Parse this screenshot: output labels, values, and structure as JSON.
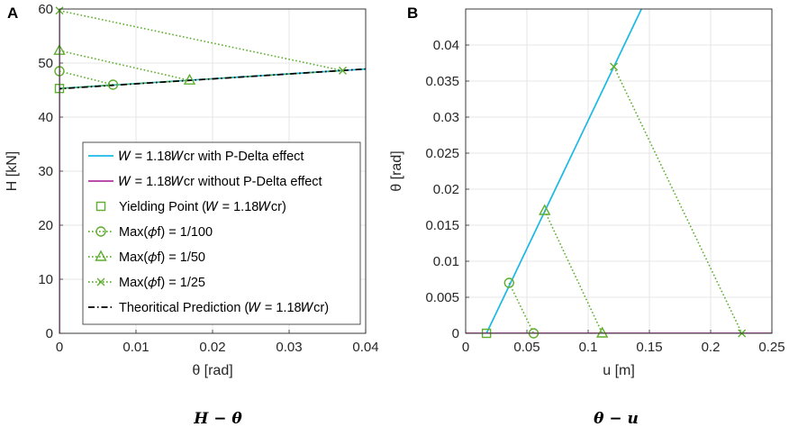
{
  "chart_data": [
    {
      "panel_label": "A",
      "type": "line",
      "xlabel": "θ [rad]",
      "ylabel": "H [kN]",
      "xlim": [
        0,
        0.04
      ],
      "ylim": [
        0,
        60
      ],
      "xticks": [
        "0",
        "0.01",
        "0.02",
        "0.03",
        "0.04"
      ],
      "yticks": [
        "0",
        "10",
        "20",
        "30",
        "40",
        "50",
        "60"
      ],
      "grid": true,
      "caption": "H − θ",
      "legend_location": "lower-right",
      "series": [
        {
          "name": "W = 1.18W_cr with P-Delta effect",
          "legend": "𝑊 = 1.18𝑊cr with P-Delta effect",
          "style": "solid",
          "color": "#1bb8e6",
          "x": [
            0,
            0.04
          ],
          "y": [
            45.3,
            48.9
          ]
        },
        {
          "name": "W = 1.18W_cr without P-Delta effect",
          "legend": "𝑊 = 1.18𝑊cr without P-Delta effect",
          "style": "solid",
          "color": "#b0359e",
          "x": [
            0,
            0
          ],
          "y": [
            0,
            60
          ]
        },
        {
          "name": "Yielding Point (W = 1.18W_cr)",
          "legend": "Yielding Point (𝑊 = 1.18𝑊cr)",
          "marker": "square",
          "color": "#5fae2e",
          "x": [
            0
          ],
          "y": [
            45.3
          ]
        },
        {
          "name": "Max(φ_f) = 1/100",
          "legend": "Max(𝜙f) = 1/100",
          "style": "dotted",
          "marker": "circle",
          "color": "#5fae2e",
          "x": [
            0,
            0.007,
            0
          ],
          "y": [
            48.5,
            46.0,
            45.3
          ]
        },
        {
          "name": "Max(φ_f) = 1/50",
          "legend": "Max(𝜙f) = 1/50",
          "style": "dotted",
          "marker": "triangle",
          "color": "#5fae2e",
          "x": [
            0,
            0.017,
            0
          ],
          "y": [
            52.3,
            46.8,
            45.3
          ]
        },
        {
          "name": "Max(φ_f) = 1/25",
          "legend": "Max(𝜙f) = 1/25",
          "style": "dotted",
          "marker": "x",
          "color": "#5fae2e",
          "x": [
            0,
            0.037,
            0
          ],
          "y": [
            59.7,
            48.6,
            45.3
          ]
        },
        {
          "name": "Theoritical Prediction (W = 1.18W_cr)",
          "legend": "Theoritical Prediction (𝑊 = 1.18𝑊cr)",
          "style": "dashdot",
          "color": "#000000",
          "x": [
            -0.0005,
            0.04
          ],
          "y": [
            45.2,
            48.9
          ]
        }
      ]
    },
    {
      "panel_label": "B",
      "type": "line",
      "xlabel": "u [m]",
      "ylabel": "θ [rad]",
      "xlim": [
        0,
        0.25
      ],
      "ylim": [
        0,
        0.045
      ],
      "xticks": [
        "0",
        "0.05",
        "0.1",
        "0.15",
        "0.2",
        "0.25"
      ],
      "yticks": [
        "0",
        "0.005",
        "0.01",
        "0.015",
        "0.02",
        "0.025",
        "0.03",
        "0.035",
        "0.04"
      ],
      "grid": true,
      "caption": "θ − u",
      "series": [
        {
          "name": "W = 1.18W_cr with P-Delta effect",
          "style": "solid",
          "color": "#1bb8e6",
          "x": [
            0.017,
            0.1435
          ],
          "y": [
            0,
            0.045
          ]
        },
        {
          "name": "W = 1.18W_cr without P-Delta effect",
          "style": "solid",
          "color": "#b0359e",
          "x": [
            0,
            0.25
          ],
          "y": [
            0,
            0
          ]
        },
        {
          "name": "Yielding Point (W = 1.18W_cr)",
          "marker": "square",
          "color": "#5fae2e",
          "x": [
            0.017
          ],
          "y": [
            0
          ]
        },
        {
          "name": "Max(φ_f) = 1/100",
          "style": "dotted",
          "marker": "circle",
          "color": "#5fae2e",
          "x": [
            0.0355,
            0.0555
          ],
          "y": [
            0.007,
            0
          ]
        },
        {
          "name": "Max(φ_f) = 1/50",
          "style": "dotted",
          "marker": "triangle",
          "color": "#5fae2e",
          "x": [
            0.0645,
            0.1115
          ],
          "y": [
            0.017,
            0
          ]
        },
        {
          "name": "Max(φ_f) = 1/25",
          "style": "dotted",
          "marker": "x",
          "color": "#5fae2e",
          "x": [
            0.121,
            0.2255
          ],
          "y": [
            0.037,
            0
          ]
        }
      ]
    }
  ]
}
